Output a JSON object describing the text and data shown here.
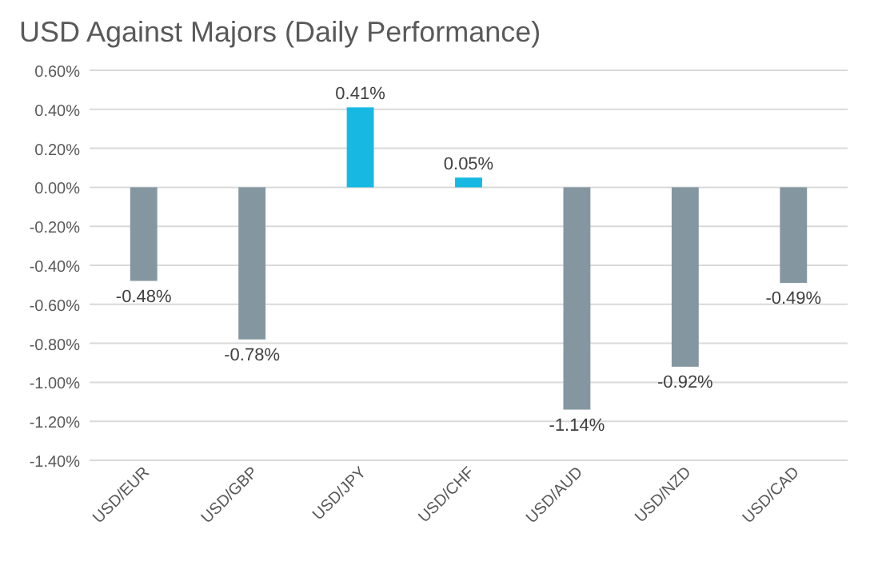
{
  "chart_data": {
    "type": "bar",
    "title": "USD Against Majors (Daily Performance)",
    "categories": [
      "USD/EUR",
      "USD/GBP",
      "USD/JPY",
      "USD/CHF",
      "USD/AUD",
      "USD/NZD",
      "USD/CAD"
    ],
    "values": [
      -0.48,
      -0.78,
      0.41,
      0.05,
      -1.14,
      -0.92,
      -0.49
    ],
    "colors": [
      "#8497a1",
      "#8497a1",
      "#17b9e3",
      "#17b9e3",
      "#8497a1",
      "#8497a1",
      "#8497a1"
    ],
    "value_labels": [
      "-0.48%",
      "-0.78%",
      "0.41%",
      "0.05%",
      "-1.14%",
      "-0.92%",
      "-0.49%"
    ],
    "ylim": [
      -1.4,
      0.6
    ],
    "yticks": [
      {
        "value": 0.6,
        "label": "0.60%"
      },
      {
        "value": 0.4,
        "label": "0.40%"
      },
      {
        "value": 0.2,
        "label": "0.20%"
      },
      {
        "value": 0,
        "label": "0.00%"
      },
      {
        "value": -0.2,
        "label": "-0.20%"
      },
      {
        "value": -0.4,
        "label": "-0.40%"
      },
      {
        "value": -0.6,
        "label": "-0.60%"
      },
      {
        "value": -0.8,
        "label": "-0.80%"
      },
      {
        "value": -1,
        "label": "-1.00%"
      },
      {
        "value": -1.2,
        "label": "-1.20%"
      },
      {
        "value": -1.4,
        "label": "-1.40%"
      }
    ],
    "grid": "y"
  }
}
